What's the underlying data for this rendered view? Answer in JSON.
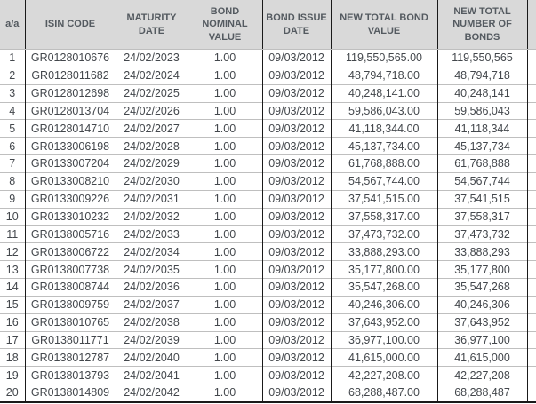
{
  "colors": {
    "header_bg": "#d9d9d9",
    "header_text": "#545a60",
    "body_text": "#43474c",
    "grid_dark": "#1a1a1a",
    "grid_light": "#bfbfbf"
  },
  "table": {
    "columns": [
      {
        "key": "aa",
        "label": "a/a"
      },
      {
        "key": "isin",
        "label": "ISIN CODE"
      },
      {
        "key": "maturity",
        "label": "MATURITY DATE"
      },
      {
        "key": "nominal",
        "label": "BOND NOMINAL VALUE"
      },
      {
        "key": "issue",
        "label": "BOND ISSUE DATE"
      },
      {
        "key": "total_value",
        "label": "NEW TOTAL BOND VALUE"
      },
      {
        "key": "total_number",
        "label": "NEW TOTAL NUMBER OF BONDS"
      }
    ],
    "rows": [
      [
        "1",
        "GR0128010676",
        "24/02/2023",
        "1.00",
        "09/03/2012",
        "119,550,565.00",
        "119,550,565"
      ],
      [
        "2",
        "GR0128011682",
        "24/02/2024",
        "1.00",
        "09/03/2012",
        "48,794,718.00",
        "48,794,718"
      ],
      [
        "3",
        "GR0128012698",
        "24/02/2025",
        "1.00",
        "09/03/2012",
        "40,248,141.00",
        "40,248,141"
      ],
      [
        "4",
        "GR0128013704",
        "24/02/2026",
        "1.00",
        "09/03/2012",
        "59,586,043.00",
        "59,586,043"
      ],
      [
        "5",
        "GR0128014710",
        "24/02/2027",
        "1.00",
        "09/03/2012",
        "41,118,344.00",
        "41,118,344"
      ],
      [
        "6",
        "GR0133006198",
        "24/02/2028",
        "1.00",
        "09/03/2012",
        "45,137,734.00",
        "45,137,734"
      ],
      [
        "7",
        "GR0133007204",
        "24/02/2029",
        "1.00",
        "09/03/2012",
        "61,768,888.00",
        "61,768,888"
      ],
      [
        "8",
        "GR0133008210",
        "24/02/2030",
        "1.00",
        "09/03/2012",
        "54,567,744.00",
        "54,567,744"
      ],
      [
        "9",
        "GR0133009226",
        "24/02/2031",
        "1.00",
        "09/03/2012",
        "37,541,515.00",
        "37,541,515"
      ],
      [
        "10",
        "GR0133010232",
        "24/02/2032",
        "1.00",
        "09/03/2012",
        "37,558,317.00",
        "37,558,317"
      ],
      [
        "11",
        "GR0138005716",
        "24/02/2033",
        "1.00",
        "09/03/2012",
        "37,473,732.00",
        "37,473,732"
      ],
      [
        "12",
        "GR0138006722",
        "24/02/2034",
        "1.00",
        "09/03/2012",
        "33,888,293.00",
        "33,888,293"
      ],
      [
        "13",
        "GR0138007738",
        "24/02/2035",
        "1.00",
        "09/03/2012",
        "35,177,800.00",
        "35,177,800"
      ],
      [
        "14",
        "GR0138008744",
        "24/02/2036",
        "1.00",
        "09/03/2012",
        "35,547,268.00",
        "35,547,268"
      ],
      [
        "15",
        "GR0138009759",
        "24/02/2037",
        "1.00",
        "09/03/2012",
        "40,246,306.00",
        "40,246,306"
      ],
      [
        "16",
        "GR0138010765",
        "24/02/2038",
        "1.00",
        "09/03/2012",
        "37,643,952.00",
        "37,643,952"
      ],
      [
        "17",
        "GR0138011771",
        "24/02/2039",
        "1.00",
        "09/03/2012",
        "36,977,100.00",
        "36,977,100"
      ],
      [
        "18",
        "GR0138012787",
        "24/02/2040",
        "1.00",
        "09/03/2012",
        "41,615,000.00",
        "41,615,000"
      ],
      [
        "19",
        "GR0138013793",
        "24/02/2041",
        "1.00",
        "09/03/2012",
        "42,227,208.00",
        "42,227,208"
      ],
      [
        "20",
        "GR0138014809",
        "24/02/2042",
        "1.00",
        "09/03/2012",
        "68,288,487.00",
        "68,288,487"
      ]
    ]
  }
}
